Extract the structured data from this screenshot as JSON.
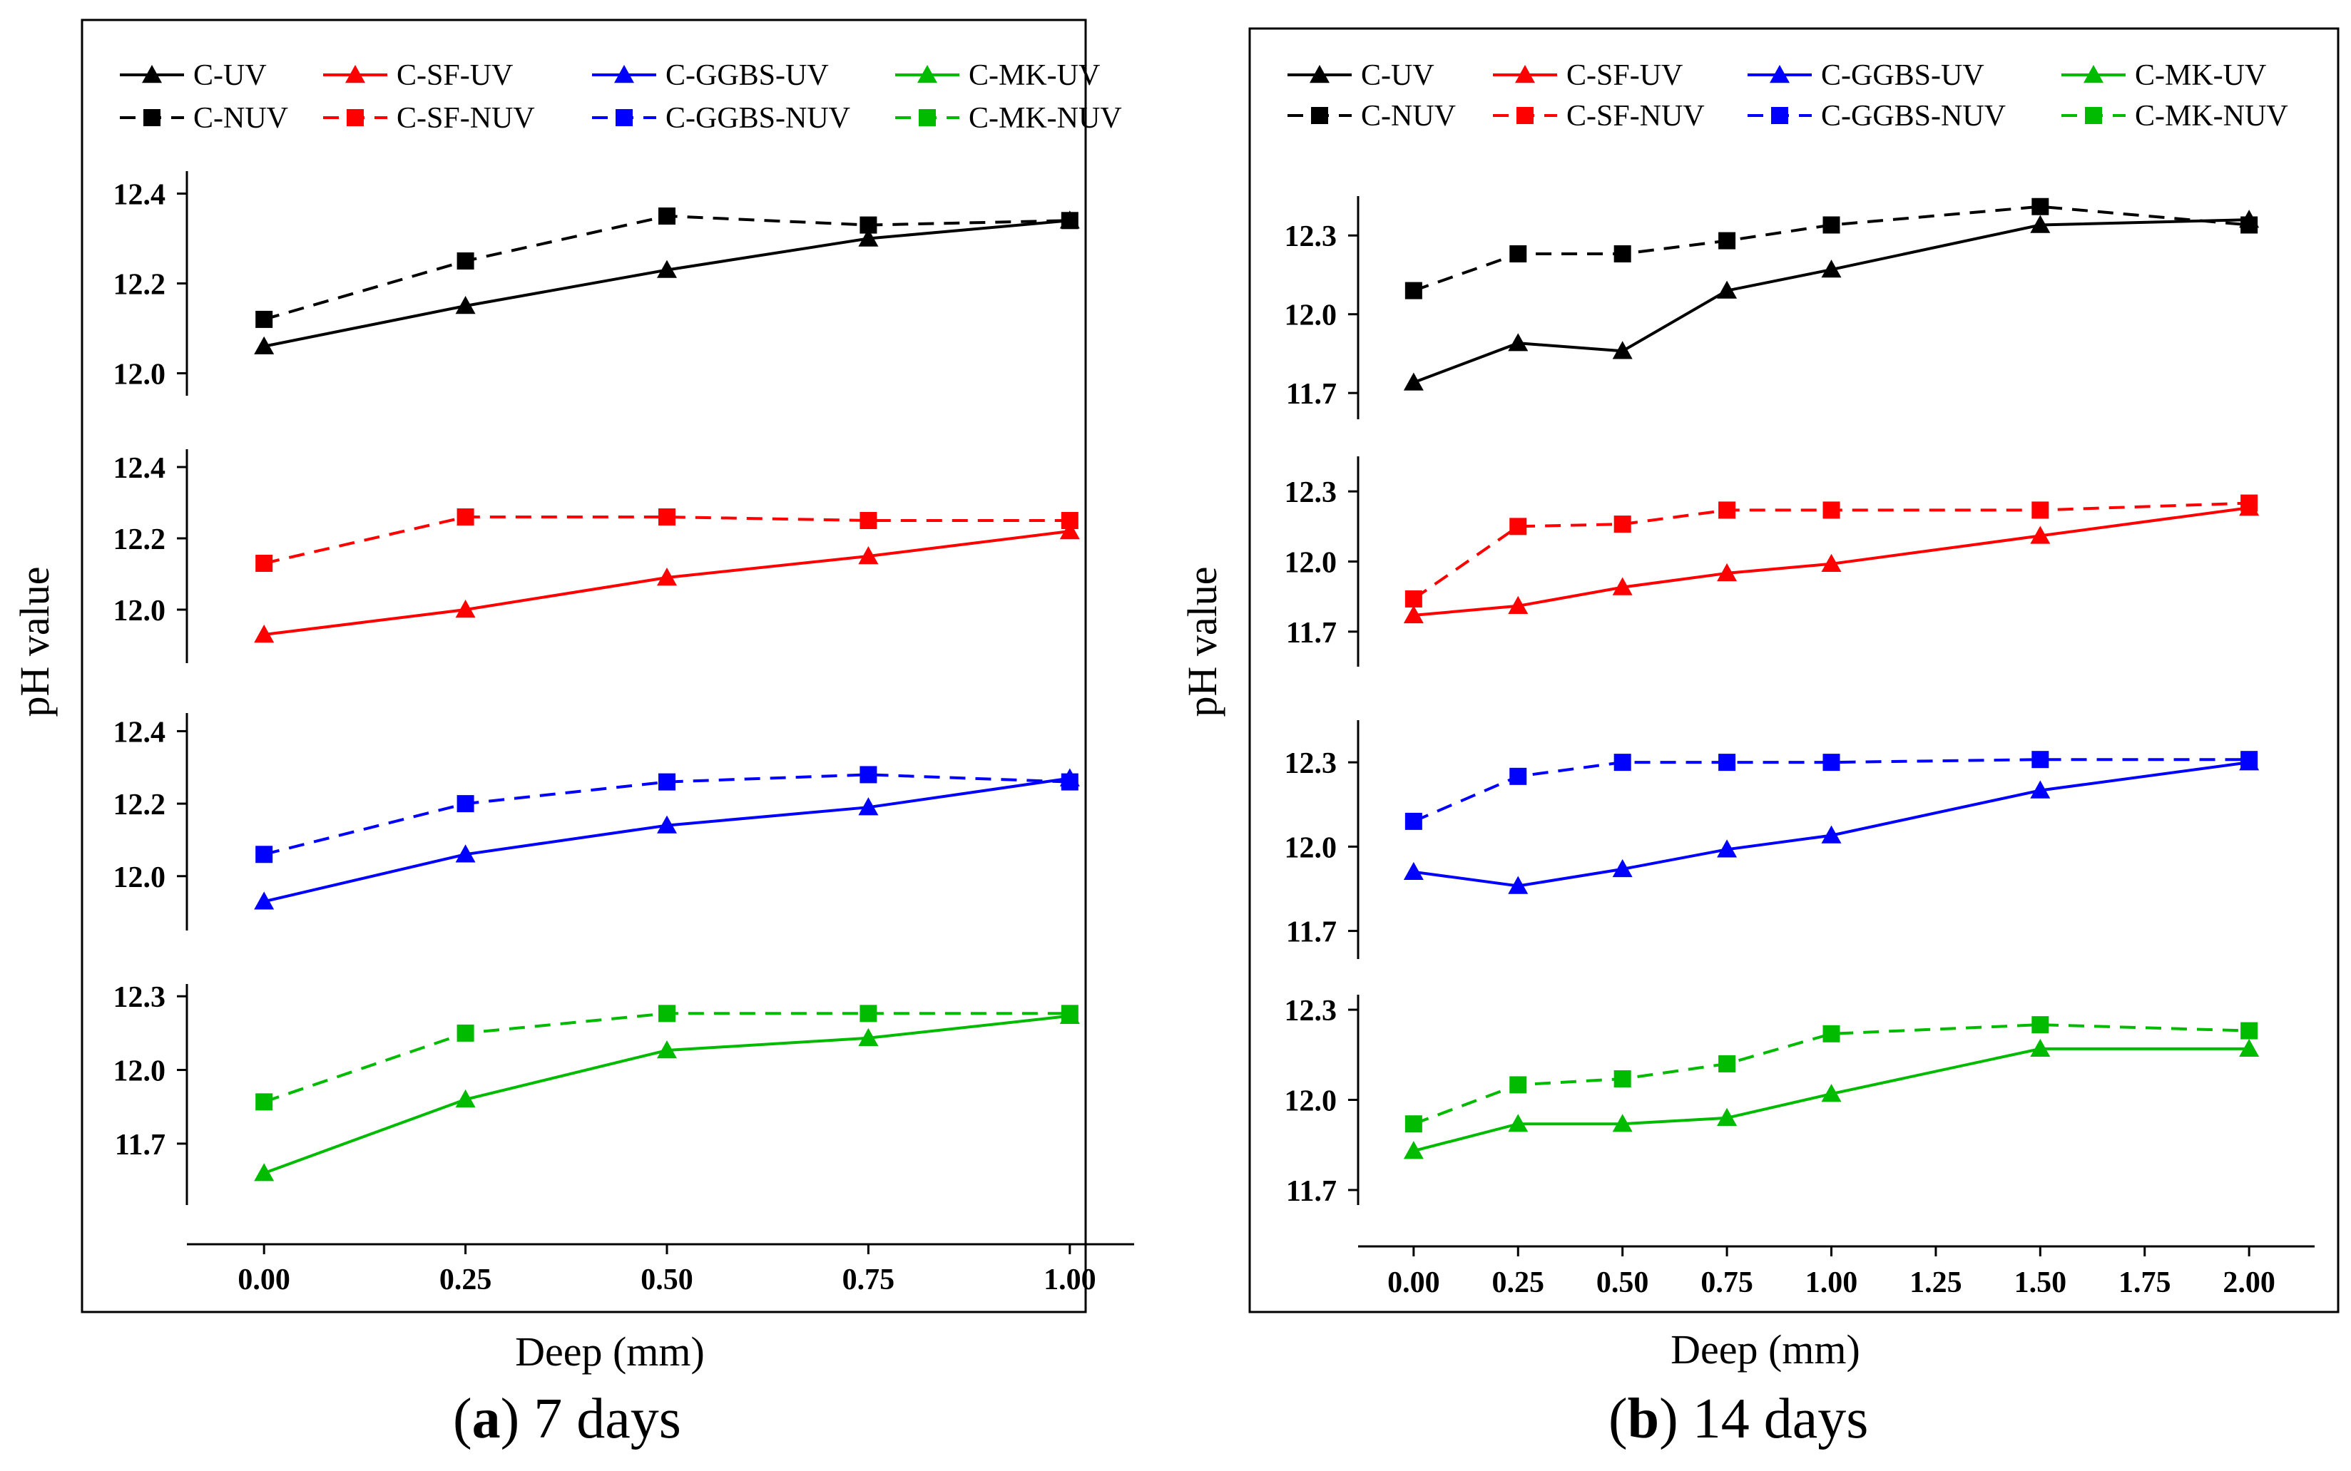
{
  "figure": {
    "xlabel": "Deep (mm)",
    "ylabel": "pH value"
  },
  "captions": [
    {
      "letter": "a",
      "text": " 7 days"
    },
    {
      "letter": "b",
      "text": " 14 days"
    }
  ],
  "colors": {
    "C": "#000000",
    "SF": "#ff0000",
    "GGBS": "#0000ff",
    "MK": "#00bb00"
  },
  "chart_data": [
    {
      "type": "line",
      "title": "7 days",
      "xlabel": "Deep (mm)",
      "ylabel": "pH value",
      "xlim": [
        -0.04,
        1.04
      ],
      "x_ticks": [
        0,
        0.25,
        0.5,
        0.75,
        1.0
      ],
      "x_tick_labels": [
        "0.00",
        "0.25",
        "0.50",
        "0.75",
        "1.00"
      ],
      "legend": {
        "position": "top",
        "entries": [
          [
            "C-UV",
            "C-SF-UV",
            "C-GGBS-UV",
            "C-MK-UV"
          ],
          [
            "C-NUV",
            "C-SF-NUV",
            "C-GGBS-NUV",
            "C-MK-NUV"
          ]
        ]
      },
      "panels": [
        {
          "group": "C",
          "ylim": [
            11.95,
            12.45
          ],
          "y_ticks": [
            12.0,
            12.2,
            12.4
          ],
          "y_tick_labels": [
            "12.0",
            "12.2",
            "12.4"
          ],
          "series": [
            {
              "name": "C-UV",
              "marker": "triangle",
              "dash": false,
              "x": [
                0,
                0.25,
                0.5,
                0.75,
                1.0
              ],
              "values": [
                12.06,
                12.15,
                12.23,
                12.3,
                12.34
              ]
            },
            {
              "name": "C-NUV",
              "marker": "square",
              "dash": true,
              "x": [
                0,
                0.25,
                0.5,
                0.75,
                1.0
              ],
              "values": [
                12.12,
                12.25,
                12.35,
                12.33,
                12.34
              ]
            }
          ]
        },
        {
          "group": "SF",
          "ylim": [
            11.85,
            12.45
          ],
          "y_ticks": [
            12.0,
            12.2,
            12.4
          ],
          "y_tick_labels": [
            "12.0",
            "12.2",
            "12.4"
          ],
          "series": [
            {
              "name": "C-SF-UV",
              "marker": "triangle",
              "dash": false,
              "x": [
                0,
                0.25,
                0.5,
                0.75,
                1.0
              ],
              "values": [
                11.93,
                12.0,
                12.09,
                12.15,
                12.22
              ]
            },
            {
              "name": "C-SF-NUV",
              "marker": "square",
              "dash": true,
              "x": [
                0,
                0.25,
                0.5,
                0.75,
                1.0
              ],
              "values": [
                12.13,
                12.26,
                12.26,
                12.25,
                12.25
              ]
            }
          ]
        },
        {
          "group": "GGBS",
          "ylim": [
            11.85,
            12.45
          ],
          "y_ticks": [
            12.0,
            12.2,
            12.4
          ],
          "y_tick_labels": [
            "12.0",
            "12.2",
            "12.4"
          ],
          "series": [
            {
              "name": "C-GGBS-UV",
              "marker": "triangle",
              "dash": false,
              "x": [
                0,
                0.25,
                0.5,
                0.75,
                1.0
              ],
              "values": [
                11.93,
                12.06,
                12.14,
                12.19,
                12.27
              ]
            },
            {
              "name": "C-GGBS-NUV",
              "marker": "square",
              "dash": true,
              "x": [
                0,
                0.25,
                0.5,
                0.75,
                1.0
              ],
              "values": [
                12.06,
                12.2,
                12.26,
                12.28,
                12.26
              ]
            }
          ]
        },
        {
          "group": "MK",
          "ylim": [
            11.45,
            12.35
          ],
          "y_ticks": [
            11.7,
            12.0,
            12.3
          ],
          "y_tick_labels": [
            "11.7",
            "12.0",
            "12.3"
          ],
          "series": [
            {
              "name": "C-MK-UV",
              "marker": "triangle",
              "dash": false,
              "x": [
                0,
                0.25,
                0.5,
                0.75,
                1.0
              ],
              "values": [
                11.58,
                11.88,
                12.08,
                12.13,
                12.22
              ]
            },
            {
              "name": "C-MK-NUV",
              "marker": "square",
              "dash": true,
              "x": [
                0,
                0.25,
                0.5,
                0.75,
                1.0
              ],
              "values": [
                11.87,
                12.15,
                12.23,
                12.23,
                12.23
              ]
            }
          ]
        }
      ]
    },
    {
      "type": "line",
      "title": "14 days",
      "xlabel": "Deep (mm)",
      "ylabel": "pH value",
      "xlim": [
        -0.08,
        2.08
      ],
      "x_ticks": [
        0,
        0.25,
        0.5,
        0.75,
        1.0,
        1.25,
        1.5,
        1.75,
        2.0
      ],
      "x_tick_labels": [
        "0.00",
        "0.25",
        "0.50",
        "0.75",
        "1.00",
        "1.25",
        "1.50",
        "1.75",
        "2.00"
      ],
      "legend": {
        "position": "top",
        "entries": [
          [
            "C-UV",
            "C-SF-UV",
            "C-GGBS-UV",
            "C-MK-UV"
          ],
          [
            "C-NUV",
            "C-SF-NUV",
            "C-GGBS-NUV",
            "C-MK-NUV"
          ]
        ]
      },
      "panels": [
        {
          "group": "C",
          "ylim": [
            11.6,
            12.45
          ],
          "y_ticks": [
            11.7,
            12.0,
            12.3
          ],
          "y_tick_labels": [
            "11.7",
            "12.0",
            "12.3"
          ],
          "series": [
            {
              "name": "C-UV",
              "marker": "triangle",
              "dash": false,
              "x": [
                0,
                0.25,
                0.5,
                0.75,
                1.0,
                1.5,
                2.0
              ],
              "values": [
                11.74,
                11.89,
                11.86,
                12.09,
                12.17,
                12.34,
                12.36
              ]
            },
            {
              "name": "C-NUV",
              "marker": "square",
              "dash": true,
              "x": [
                0,
                0.25,
                0.5,
                0.75,
                1.0,
                1.5,
                2.0
              ],
              "values": [
                12.09,
                12.23,
                12.23,
                12.28,
                12.34,
                12.41,
                12.34
              ]
            }
          ]
        },
        {
          "group": "SF",
          "ylim": [
            11.55,
            12.45
          ],
          "y_ticks": [
            11.7,
            12.0,
            12.3
          ],
          "y_tick_labels": [
            "11.7",
            "12.0",
            "12.3"
          ],
          "series": [
            {
              "name": "C-SF-UV",
              "marker": "triangle",
              "dash": false,
              "x": [
                0,
                0.25,
                0.5,
                0.75,
                1.0,
                1.5,
                2.0
              ],
              "values": [
                11.77,
                11.81,
                11.89,
                11.95,
                11.99,
                12.11,
                12.23
              ]
            },
            {
              "name": "C-SF-NUV",
              "marker": "square",
              "dash": true,
              "x": [
                0,
                0.25,
                0.5,
                0.75,
                1.0,
                1.5,
                2.0
              ],
              "values": [
                11.84,
                12.15,
                12.16,
                12.22,
                12.22,
                12.22,
                12.25
              ]
            }
          ]
        },
        {
          "group": "GGBS",
          "ylim": [
            11.6,
            12.45
          ],
          "y_ticks": [
            11.7,
            12.0,
            12.3
          ],
          "y_tick_labels": [
            "11.7",
            "12.0",
            "12.3"
          ],
          "series": [
            {
              "name": "C-GGBS-UV",
              "marker": "triangle",
              "dash": false,
              "x": [
                0,
                0.25,
                0.5,
                0.75,
                1.0,
                1.5,
                2.0
              ],
              "values": [
                11.91,
                11.86,
                11.92,
                11.99,
                12.04,
                12.2,
                12.3
              ]
            },
            {
              "name": "C-GGBS-NUV",
              "marker": "square",
              "dash": true,
              "x": [
                0,
                0.25,
                0.5,
                0.75,
                1.0,
                1.5,
                2.0
              ],
              "values": [
                12.09,
                12.25,
                12.3,
                12.3,
                12.3,
                12.31,
                12.31
              ]
            }
          ]
        },
        {
          "group": "MK",
          "ylim": [
            11.65,
            12.35
          ],
          "y_ticks": [
            11.7,
            12.0,
            12.3
          ],
          "y_tick_labels": [
            "11.7",
            "12.0",
            "12.3"
          ],
          "series": [
            {
              "name": "C-MK-UV",
              "marker": "triangle",
              "dash": false,
              "x": [
                0,
                0.25,
                0.5,
                0.75,
                1.0,
                1.5,
                2.0
              ],
              "values": [
                11.83,
                11.92,
                11.92,
                11.94,
                12.02,
                12.17,
                12.17
              ]
            },
            {
              "name": "C-MK-NUV",
              "marker": "square",
              "dash": true,
              "x": [
                0,
                0.25,
                0.5,
                0.75,
                1.0,
                1.5,
                2.0
              ],
              "values": [
                11.92,
                12.05,
                12.07,
                12.12,
                12.22,
                12.25,
                12.23
              ]
            }
          ]
        }
      ]
    }
  ]
}
